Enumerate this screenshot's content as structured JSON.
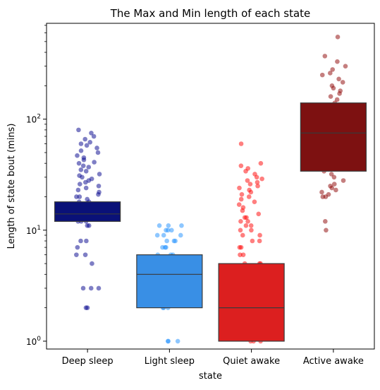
{
  "chart_data": {
    "type": "box",
    "title": "The Max and Min length of each state",
    "xlabel": "state",
    "ylabel": "Length of state bout (mins)",
    "yscale": "log",
    "ylim": [
      0.85,
      730
    ],
    "y_ticks": [
      {
        "value": 1,
        "base": "10",
        "exp": "0"
      },
      {
        "value": 10,
        "base": "10",
        "exp": "1"
      },
      {
        "value": 100,
        "base": "10",
        "exp": "2"
      }
    ],
    "categories": [
      "Deep sleep",
      "Light sleep",
      "Quiet awake",
      "Active awake"
    ],
    "series": [
      {
        "color": "#0a1178",
        "point_color": "#00008b",
        "box": {
          "q1": 12,
          "median": 14,
          "q3": 18
        },
        "points": [
          11,
          11,
          12,
          12,
          12,
          13,
          13,
          13,
          14,
          14,
          14,
          15,
          15,
          16,
          16,
          17,
          17,
          18,
          18,
          19,
          20,
          20,
          21,
          22,
          23,
          24,
          25,
          26,
          27,
          28,
          29,
          30,
          31,
          32,
          34,
          35,
          37,
          38,
          40,
          41,
          43,
          45,
          47,
          50,
          52,
          55,
          58,
          60,
          62,
          66,
          70,
          75,
          80,
          8,
          8,
          7,
          6,
          6,
          5,
          3,
          3,
          3,
          2,
          2
        ]
      },
      {
        "color": "#398fe5",
        "point_color": "#1e90ff",
        "box": {
          "q1": 2,
          "median": 4,
          "q3": 6
        },
        "points": [
          1,
          1,
          1,
          2,
          2,
          2,
          3,
          3,
          3,
          4,
          4,
          4,
          5,
          5,
          5,
          6,
          6,
          6,
          7,
          7,
          7,
          8,
          8,
          8,
          9,
          9,
          9,
          10,
          10,
          10,
          11,
          11,
          11
        ]
      },
      {
        "color": "#dc1f1f",
        "point_color": "#ff0000",
        "box": {
          "q1": 1,
          "median": 2,
          "q3": 5
        },
        "points": [
          1,
          1,
          1,
          2,
          2,
          2,
          3,
          3,
          3,
          4,
          4,
          4,
          5,
          5,
          5,
          6,
          6,
          7,
          7,
          8,
          8,
          9,
          9,
          10,
          10,
          11,
          11,
          12,
          12,
          13,
          13,
          14,
          15,
          16,
          17,
          18,
          19,
          20,
          21,
          22,
          23,
          24,
          25,
          26,
          27,
          28,
          29,
          30,
          32,
          34,
          36,
          38,
          40,
          60
        ]
      },
      {
        "color": "#7d1111",
        "point_color": "#8b0000",
        "box": {
          "q1": 34,
          "median": 75,
          "q3": 140
        },
        "points": [
          20,
          20,
          21,
          22,
          23,
          24,
          25,
          26,
          28,
          30,
          32,
          34,
          36,
          38,
          40,
          43,
          46,
          50,
          54,
          58,
          62,
          66,
          70,
          75,
          80,
          86,
          92,
          98,
          105,
          112,
          120,
          130,
          140,
          150,
          160,
          170,
          180,
          190,
          200,
          215,
          230,
          250,
          260,
          280,
          300,
          330,
          370,
          550,
          12,
          10
        ]
      }
    ]
  }
}
